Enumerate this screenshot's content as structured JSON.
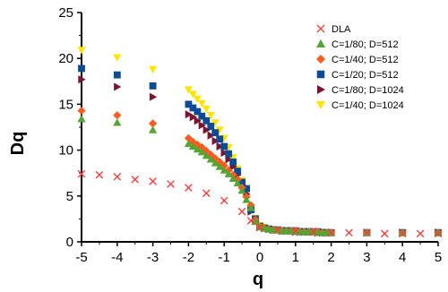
{
  "chart_data": {
    "type": "scatter",
    "title": "",
    "xlabel": "q",
    "ylabel": "Dq",
    "xlim": [
      -5,
      5
    ],
    "ylim": [
      0,
      25
    ],
    "xticks": [
      -5,
      -4,
      -3,
      -2,
      -1,
      0,
      1,
      2,
      3,
      4,
      5
    ],
    "yticks": [
      0,
      5,
      10,
      15,
      20,
      25
    ],
    "xtick_labels": [
      "-5",
      "-4",
      "-3",
      "-2",
      "-1",
      "0",
      "1",
      "2",
      "3",
      "4",
      "5"
    ],
    "ytick_labels": [
      "0",
      "5",
      "10",
      "15",
      "20",
      "25"
    ],
    "grid": false,
    "legend_position": "top-right",
    "series": [
      {
        "name": "DLA",
        "marker": "x",
        "color": "#ff3b3b",
        "x": [
          -5,
          -4.5,
          -4,
          -3.5,
          -3,
          -2.5,
          -2,
          -1.5,
          -1,
          -0.5,
          -0.25,
          0,
          0.5,
          1,
          1.5,
          2,
          2.5,
          3,
          3.5,
          4,
          4.5,
          5
        ],
        "y": [
          7.4,
          7.3,
          7.1,
          6.8,
          6.6,
          6.3,
          5.9,
          5.3,
          4.5,
          3.3,
          2.3,
          1.6,
          1.3,
          1.2,
          1.1,
          1.0,
          1.0,
          1.0,
          0.9,
          0.9,
          0.9,
          0.9
        ]
      },
      {
        "name": "C=1/80; D=512",
        "marker": "triangle-up",
        "color": "#55a533",
        "x": [
          -5,
          -4,
          -3,
          -2,
          -1.875,
          -1.75,
          -1.625,
          -1.5,
          -1.375,
          -1.25,
          -1.125,
          -1,
          -0.875,
          -0.75,
          -0.625,
          -0.5,
          -0.375,
          -0.25,
          -0.125,
          0,
          0.125,
          0.25,
          0.375,
          0.5,
          0.625,
          0.75,
          0.875,
          1,
          1.125,
          1.25,
          1.375,
          1.5,
          1.625,
          1.75,
          1.875,
          2,
          3,
          4,
          5
        ],
        "y": [
          13.4,
          13.0,
          12.2,
          10.7,
          10.4,
          10.1,
          9.8,
          9.4,
          9.0,
          8.6,
          8.2,
          7.8,
          7.4,
          6.9,
          6.4,
          5.6,
          4.6,
          3.7,
          2.2,
          1.6,
          1.5,
          1.4,
          1.3,
          1.3,
          1.2,
          1.2,
          1.2,
          1.1,
          1.1,
          1.1,
          1.1,
          1.1,
          1.0,
          1.0,
          1.0,
          1.0,
          1.0,
          1.0,
          1.0
        ]
      },
      {
        "name": "C=1/40; D=512",
        "marker": "diamond",
        "color": "#ff5a1f",
        "x": [
          -5,
          -4,
          -3,
          -2,
          -1.875,
          -1.75,
          -1.625,
          -1.5,
          -1.375,
          -1.25,
          -1.125,
          -1,
          -0.875,
          -0.75,
          -0.625,
          -0.5,
          -0.375,
          -0.25,
          -0.125,
          0,
          0.125,
          0.25,
          0.375,
          0.5,
          0.625,
          0.75,
          0.875,
          1,
          1.125,
          1.25,
          1.375,
          1.5,
          1.625,
          1.75,
          1.875,
          2,
          3,
          4,
          5
        ],
        "y": [
          14.3,
          13.8,
          12.9,
          11.3,
          10.9,
          10.6,
          10.3,
          9.9,
          9.5,
          9.1,
          8.7,
          8.3,
          7.8,
          7.3,
          6.8,
          5.9,
          4.9,
          4.0,
          2.4,
          1.7,
          1.5,
          1.4,
          1.3,
          1.3,
          1.2,
          1.2,
          1.2,
          1.2,
          1.1,
          1.1,
          1.1,
          1.1,
          1.1,
          1.0,
          1.0,
          1.0,
          1.0,
          1.0,
          1.0
        ]
      },
      {
        "name": "C=1/20; D=512",
        "marker": "square",
        "color": "#0d4b94",
        "x": [
          -5,
          -4,
          -3,
          -2,
          -1.875,
          -1.75,
          -1.625,
          -1.5,
          -1.375,
          -1.25,
          -1.125,
          -1,
          -0.875,
          -0.75,
          -0.625,
          -0.5,
          -0.375,
          -0.25,
          -0.125,
          0,
          0.125,
          0.25,
          0.375,
          0.5,
          0.625,
          0.75,
          0.875,
          1,
          1.125,
          1.25,
          1.375,
          1.5,
          1.625,
          1.75,
          1.875,
          2,
          3,
          4,
          5
        ],
        "y": [
          18.9,
          18.2,
          17.0,
          15.0,
          14.6,
          14.2,
          13.7,
          13.2,
          12.6,
          11.9,
          11.2,
          10.4,
          9.6,
          8.7,
          7.7,
          6.5,
          5.8,
          3.5,
          2.5,
          1.7,
          1.5,
          1.4,
          1.3,
          1.3,
          1.2,
          1.2,
          1.2,
          1.2,
          1.1,
          1.1,
          1.1,
          1.1,
          1.1,
          1.0,
          1.0,
          1.0,
          1.0,
          1.0,
          1.0
        ]
      },
      {
        "name": "C=1/80; D=1024",
        "marker": "triangle-right",
        "color": "#7a1530",
        "x": [
          -5,
          -4,
          -3,
          -2,
          -1.875,
          -1.75,
          -1.625,
          -1.5,
          -1.375,
          -1.25,
          -1.125,
          -1,
          -0.875,
          -0.75,
          -0.625,
          -0.5,
          -0.375,
          -0.25,
          -0.125,
          0,
          0.125,
          0.25,
          0.375,
          0.5,
          0.625,
          0.75,
          0.875,
          1,
          1.125,
          1.25,
          1.375,
          1.5,
          1.625,
          1.75,
          1.875,
          2,
          3,
          4,
          5
        ],
        "y": [
          17.7,
          16.9,
          15.8,
          13.9,
          13.6,
          13.2,
          12.7,
          12.2,
          11.6,
          11.0,
          10.4,
          9.7,
          9.0,
          8.2,
          7.3,
          6.2,
          5.2,
          3.3,
          2.4,
          1.6,
          1.5,
          1.4,
          1.3,
          1.3,
          1.2,
          1.2,
          1.2,
          1.1,
          1.1,
          1.1,
          1.1,
          1.1,
          1.0,
          1.0,
          1.0,
          1.0,
          1.0,
          1.0,
          1.0
        ]
      },
      {
        "name": "C=1/40; D=1024",
        "marker": "triangle-down",
        "color": "#ffe500",
        "x": [
          -5,
          -4,
          -3,
          -2,
          -1.875,
          -1.75,
          -1.625,
          -1.5,
          -1.375,
          -1.25,
          -1.125,
          -1,
          -0.875,
          -0.75,
          -0.625,
          -0.5,
          -0.375,
          -0.25,
          -0.125,
          0,
          0.125,
          0.25,
          0.375,
          0.5,
          0.625,
          0.75,
          0.875,
          1,
          1.125,
          1.25,
          1.375,
          1.5,
          1.625,
          1.75,
          1.875,
          2,
          3,
          4,
          5
        ],
        "y": [
          20.9,
          20.1,
          18.8,
          16.6,
          16.1,
          15.6,
          15.1,
          14.5,
          13.8,
          13.0,
          12.2,
          11.3,
          10.3,
          9.2,
          8.0,
          6.7,
          5.4,
          3.6,
          2.6,
          1.8,
          1.6,
          1.4,
          1.3,
          1.3,
          1.2,
          1.2,
          1.2,
          1.2,
          1.1,
          1.1,
          1.1,
          1.1,
          1.1,
          1.0,
          1.0,
          1.0,
          1.0,
          1.0,
          1.0
        ]
      }
    ]
  }
}
